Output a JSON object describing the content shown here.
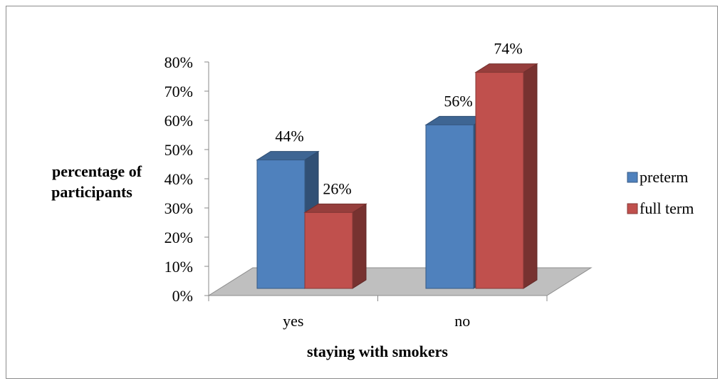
{
  "chart_data": {
    "type": "bar",
    "title": "",
    "xlabel": "staying with smokers",
    "ylabel": [
      "percentage of",
      "participants"
    ],
    "categories": [
      "yes",
      "no"
    ],
    "series": [
      {
        "name": "preterm",
        "values": [
          44,
          56
        ],
        "labels": [
          "44%",
          "56%"
        ]
      },
      {
        "name": "full term",
        "values": [
          26,
          74
        ],
        "labels": [
          "26%",
          "74%"
        ]
      }
    ],
    "yticks": [
      "0%",
      "10%",
      "20%",
      "30%",
      "40%",
      "50%",
      "60%",
      "70%",
      "80%"
    ],
    "ylim": [
      0,
      80
    ],
    "grid": false,
    "legend_position": "right",
    "colors": {
      "preterm": "#4f81bd",
      "full_term": "#c0504d",
      "floor": "#bfbfbf"
    }
  }
}
